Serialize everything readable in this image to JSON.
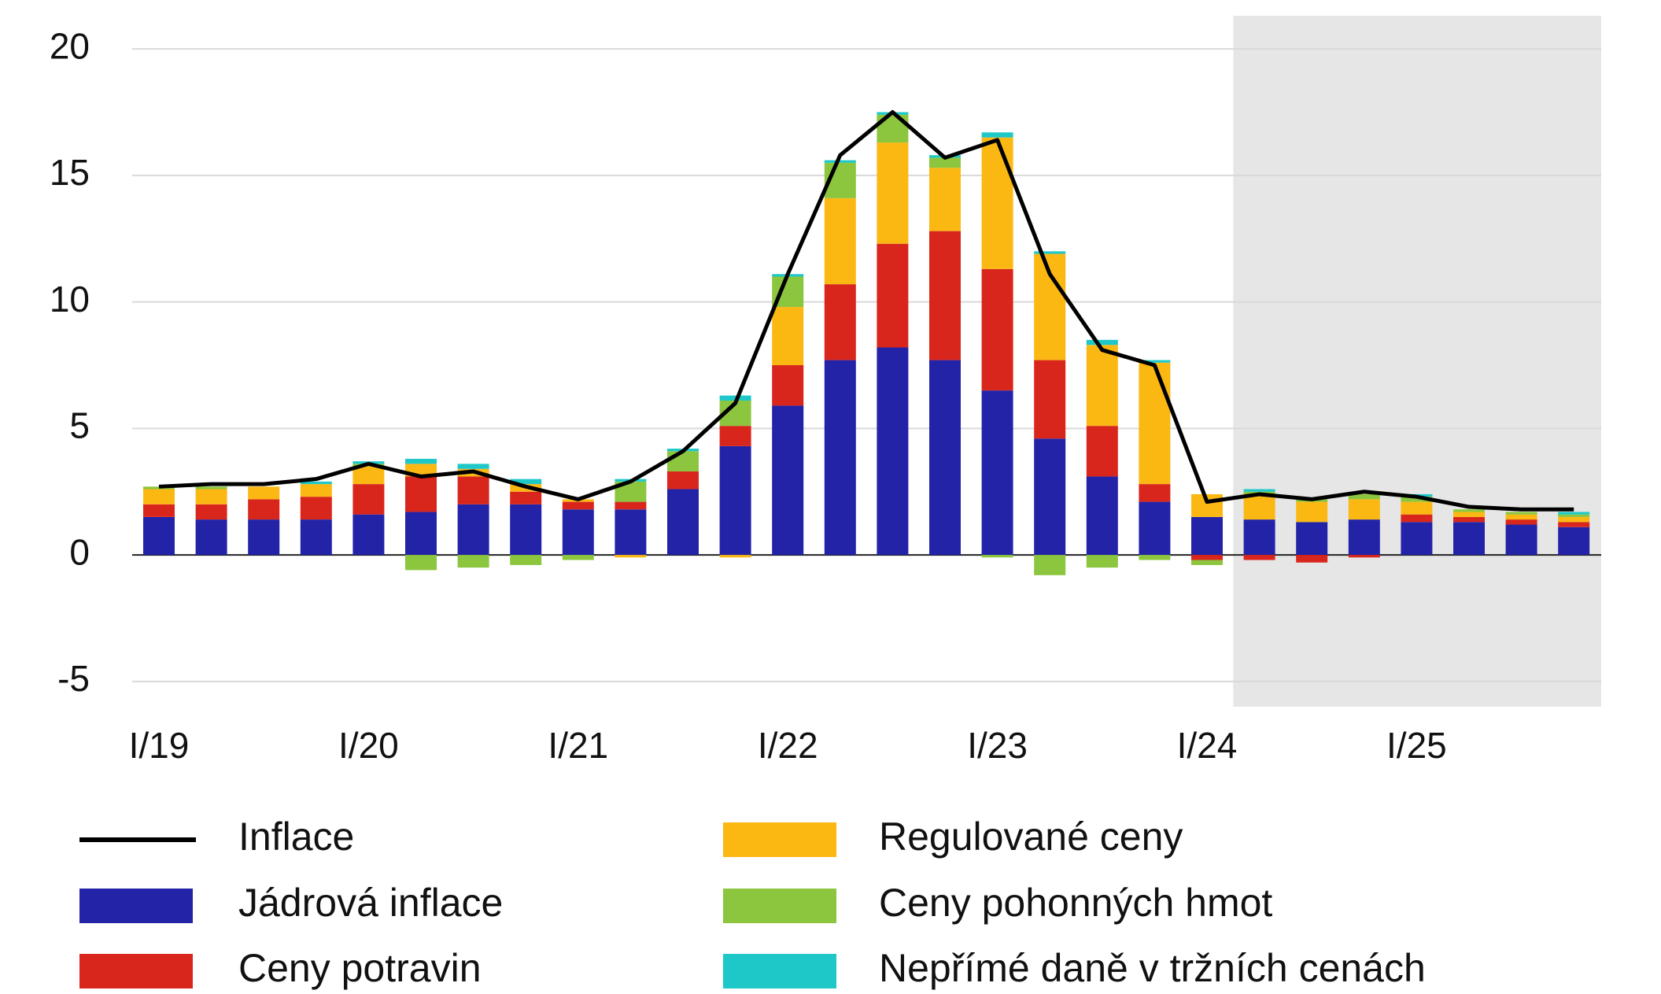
{
  "chart_data": {
    "type": "bar",
    "stacked": true,
    "categories": [
      "I/19",
      null,
      null,
      null,
      "I/20",
      null,
      null,
      null,
      "I/21",
      null,
      null,
      null,
      "I/22",
      null,
      null,
      null,
      "I/23",
      null,
      null,
      null,
      "I/24",
      null,
      null,
      null,
      "I/25",
      null,
      null,
      null
    ],
    "ylim": [
      -6,
      21
    ],
    "yticks": [
      -5,
      0,
      5,
      10,
      15,
      20
    ],
    "grid": true,
    "series": [
      {
        "name": "Inflace",
        "type": "line",
        "color": "#000000",
        "values": [
          2.7,
          2.8,
          2.8,
          3.0,
          3.6,
          3.1,
          3.3,
          2.7,
          2.2,
          2.9,
          4.1,
          6.0,
          11.1,
          15.8,
          17.5,
          15.7,
          16.4,
          11.1,
          8.1,
          7.5,
          2.1,
          2.4,
          2.2,
          2.5,
          2.3,
          1.9,
          1.8,
          1.8
        ]
      },
      {
        "name": "Jádrová inflace",
        "color": "#2323a8",
        "values": [
          1.5,
          1.4,
          1.4,
          1.4,
          1.6,
          1.7,
          2.0,
          2.0,
          1.8,
          1.8,
          2.6,
          4.3,
          5.9,
          7.7,
          8.2,
          7.7,
          6.5,
          4.6,
          3.1,
          2.1,
          1.5,
          1.4,
          1.3,
          1.4,
          1.3,
          1.3,
          1.2,
          1.1
        ]
      },
      {
        "name": "Ceny potravin",
        "color": "#d9261c",
        "values": [
          0.5,
          0.6,
          0.8,
          0.9,
          1.2,
          1.4,
          1.1,
          0.5,
          0.3,
          0.3,
          0.7,
          0.8,
          1.6,
          3.0,
          4.1,
          5.1,
          4.8,
          3.1,
          2.0,
          0.7,
          -0.2,
          -0.2,
          -0.3,
          -0.1,
          0.3,
          0.2,
          0.2,
          0.2
        ]
      },
      {
        "name": "Regulované ceny",
        "color": "#fbb813",
        "values": [
          0.6,
          0.6,
          0.5,
          0.5,
          0.7,
          0.5,
          0.3,
          0.3,
          0.1,
          -0.1,
          0.0,
          -0.1,
          2.3,
          3.4,
          4.0,
          2.5,
          5.2,
          4.2,
          3.2,
          4.8,
          0.9,
          1.0,
          0.8,
          0.8,
          0.5,
          0.2,
          0.2,
          0.2
        ]
      },
      {
        "name": "Ceny pohonných hmot",
        "color": "#8cc63e",
        "values": [
          0.1,
          0.1,
          0.0,
          0.0,
          0.1,
          -0.6,
          -0.5,
          -0.4,
          -0.2,
          0.8,
          0.8,
          1.0,
          1.2,
          1.4,
          1.1,
          0.4,
          -0.1,
          -0.8,
          -0.5,
          -0.2,
          -0.2,
          0.1,
          0.1,
          0.2,
          0.2,
          0.1,
          0.1,
          0.1
        ]
      },
      {
        "name": "Nepřímé daně v tržních cenách",
        "color": "#1ec8c8",
        "values": [
          0.0,
          0.0,
          0.0,
          0.1,
          0.1,
          0.2,
          0.2,
          0.2,
          0.0,
          0.1,
          0.1,
          0.2,
          0.1,
          0.1,
          0.1,
          0.1,
          0.2,
          0.1,
          0.2,
          0.1,
          0.0,
          0.1,
          0.0,
          0.0,
          0.1,
          0.0,
          0.0,
          0.1
        ]
      }
    ]
  }
}
